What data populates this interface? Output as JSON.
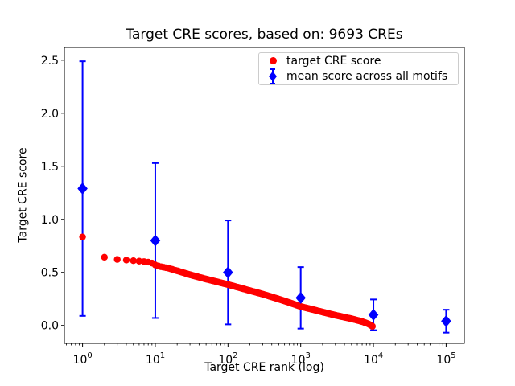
{
  "figure": {
    "background": "#ffffff"
  },
  "chart_data": {
    "type": "scatter",
    "title": "Target CRE scores, based on: 9693 CREs",
    "xlabel": "Target CRE rank (log)",
    "ylabel": "Target CRE score",
    "x_scale": "log",
    "y_scale": "linear",
    "xlim": [
      0.5623,
      177828
    ],
    "ylim": [
      -0.169,
      2.62
    ],
    "grid": false,
    "x_ticks": [
      {
        "value": 1,
        "base": "10",
        "exp": "0"
      },
      {
        "value": 10,
        "base": "10",
        "exp": "1"
      },
      {
        "value": 100,
        "base": "10",
        "exp": "2"
      },
      {
        "value": 1000,
        "base": "10",
        "exp": "3"
      },
      {
        "value": 10000,
        "base": "10",
        "exp": "4"
      },
      {
        "value": 100000,
        "base": "10",
        "exp": "5"
      }
    ],
    "y_ticks": [
      {
        "value": 0.0,
        "label": "0.0"
      },
      {
        "value": 0.5,
        "label": "0.5"
      },
      {
        "value": 1.0,
        "label": "1.0"
      },
      {
        "value": 1.5,
        "label": "1.5"
      },
      {
        "value": 2.0,
        "label": "2.0"
      },
      {
        "value": 2.5,
        "label": "2.5"
      }
    ],
    "legend": {
      "position": "upper right",
      "entries": [
        {
          "label": "target CRE score",
          "marker": "circle",
          "color": "#ff0000"
        },
        {
          "label": "mean score across all motifs",
          "marker": "diamond-errorbar",
          "color": "#0000ff"
        }
      ]
    },
    "series": [
      {
        "name": "target CRE score",
        "type": "scatter",
        "marker": "circle",
        "color": "#ff0000",
        "n_points_depicted": 9693,
        "curve_anchor_points": [
          [
            1,
            0.834
          ],
          [
            2,
            0.643
          ],
          [
            3,
            0.622
          ],
          [
            4,
            0.616
          ],
          [
            5,
            0.61
          ],
          [
            6,
            0.606
          ],
          [
            7,
            0.602
          ],
          [
            8,
            0.597
          ],
          [
            9,
            0.588
          ],
          [
            10,
            0.57
          ],
          [
            12,
            0.553
          ],
          [
            15,
            0.54
          ],
          [
            20,
            0.515
          ],
          [
            30,
            0.478
          ],
          [
            50,
            0.437
          ],
          [
            70,
            0.412
          ],
          [
            100,
            0.385
          ],
          [
            150,
            0.352
          ],
          [
            200,
            0.328
          ],
          [
            300,
            0.295
          ],
          [
            500,
            0.248
          ],
          [
            700,
            0.215
          ],
          [
            1000,
            0.178
          ],
          [
            1500,
            0.148
          ],
          [
            2000,
            0.126
          ],
          [
            3000,
            0.096
          ],
          [
            5000,
            0.063
          ],
          [
            7000,
            0.036
          ],
          [
            8500,
            0.015
          ],
          [
            9693,
            -0.008
          ]
        ]
      },
      {
        "name": "mean score across all motifs",
        "type": "errorbar",
        "marker": "diamond",
        "color": "#0000ff",
        "points": [
          {
            "x": 1,
            "y": 1.29,
            "yerr": 1.2
          },
          {
            "x": 10,
            "y": 0.8,
            "yerr": 0.73
          },
          {
            "x": 100,
            "y": 0.5,
            "yerr": 0.49
          },
          {
            "x": 1000,
            "y": 0.26,
            "yerr": 0.29
          },
          {
            "x": 10000,
            "y": 0.1,
            "yerr": 0.145
          },
          {
            "x": 100000,
            "y": 0.04,
            "yerr": 0.108
          }
        ]
      }
    ]
  }
}
